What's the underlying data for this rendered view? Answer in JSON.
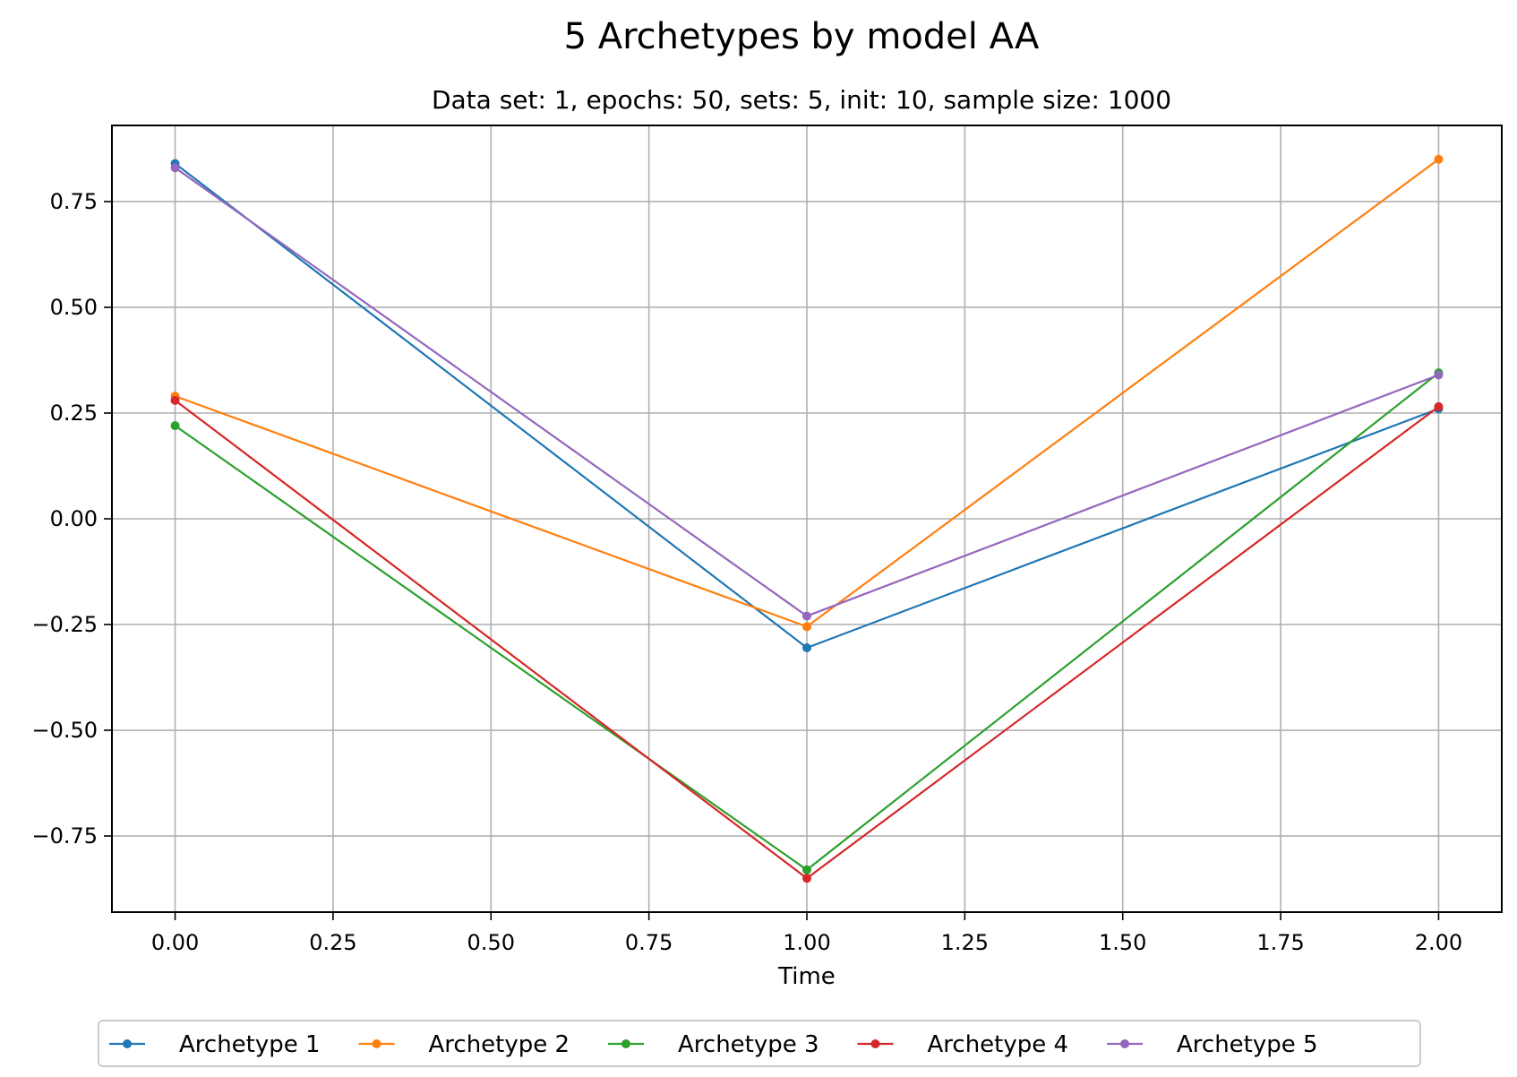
{
  "chart_data": {
    "type": "line",
    "title": "5 Archetypes by model AA",
    "subtitle": "Data set: 1, epochs: 50, sets: 5, init: 10, sample size: 1000",
    "xlabel": "Time",
    "ylabel": "",
    "x": [
      0,
      1,
      2
    ],
    "xlim": [
      -0.1,
      2.1
    ],
    "ylim": [
      -0.93,
      0.93
    ],
    "xticks": [
      0.0,
      0.25,
      0.5,
      0.75,
      1.0,
      1.25,
      1.5,
      1.75,
      2.0
    ],
    "xtick_labels": [
      "0.00",
      "0.25",
      "0.50",
      "0.75",
      "1.00",
      "1.25",
      "1.50",
      "1.75",
      "2.00"
    ],
    "yticks": [
      0.75,
      0.5,
      0.25,
      0.0,
      -0.25,
      -0.5,
      -0.75
    ],
    "ytick_labels": [
      "0.75",
      "0.50",
      "0.25",
      "0.00",
      "−0.25",
      "−0.50",
      "−0.75"
    ],
    "grid": true,
    "legend_position": "bottom-center",
    "series": [
      {
        "name": "Archetype 1",
        "color": "#1f77b4",
        "values": [
          0.84,
          -0.305,
          0.26
        ]
      },
      {
        "name": "Archetype 2",
        "color": "#ff7f0e",
        "values": [
          0.29,
          -0.255,
          0.85
        ]
      },
      {
        "name": "Archetype 3",
        "color": "#2ca02c",
        "values": [
          0.22,
          -0.83,
          0.345
        ]
      },
      {
        "name": "Archetype 4",
        "color": "#d62728",
        "values": [
          0.28,
          -0.85,
          0.265
        ]
      },
      {
        "name": "Archetype 5",
        "color": "#9467bd",
        "values": [
          0.83,
          -0.23,
          0.34
        ]
      }
    ]
  }
}
